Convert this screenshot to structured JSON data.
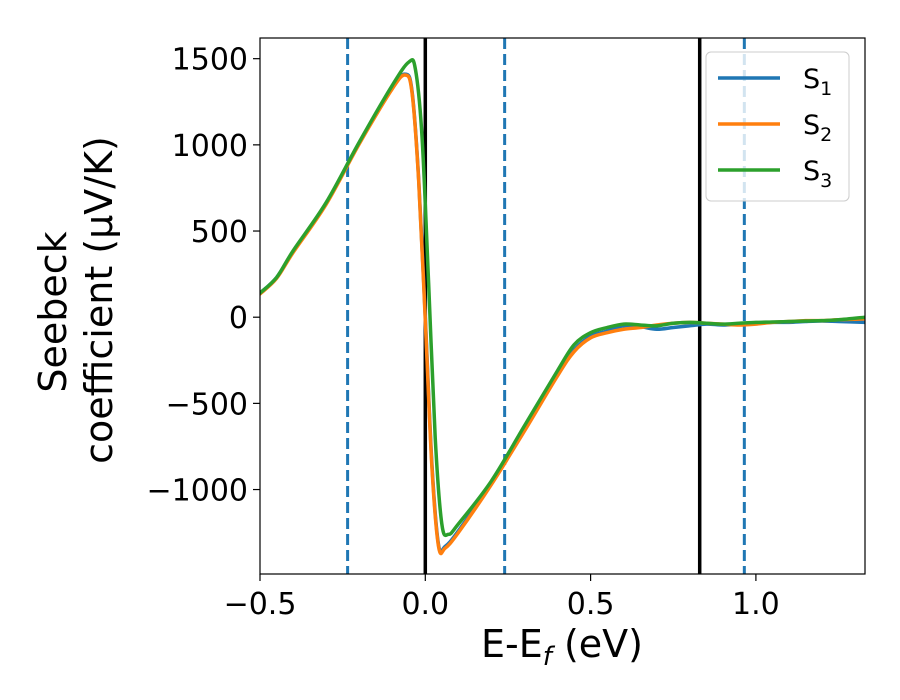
{
  "chart_data": {
    "type": "line",
    "xlabel": "E-E",
    "xlabel_sub": "f",
    "xlabel_unit": " (eV)",
    "ylabel_line1": "Seebeck",
    "ylabel_line2": "coefficient  (μV/K)",
    "xlim": [
      -0.5,
      1.33
    ],
    "ylim": [
      -1490,
      1620
    ],
    "x_ticks": [
      -0.5,
      0.0,
      0.5,
      1.0
    ],
    "x_tick_labels": [
      "−0.5",
      "0.0",
      "0.5",
      "1.0"
    ],
    "y_ticks": [
      -1000,
      -500,
      0,
      500,
      1000,
      1500
    ],
    "y_tick_labels": [
      "−1000",
      "−500",
      "0",
      "500",
      "1000",
      "1500"
    ],
    "legend_position": "top-right",
    "vertical_lines": [
      {
        "x": 0.0,
        "style": "solid",
        "color": "#000000"
      },
      {
        "x": 0.83,
        "style": "solid",
        "color": "#000000"
      },
      {
        "x": -0.235,
        "style": "dashed",
        "color": "#1f77b4"
      },
      {
        "x": 0.24,
        "style": "dashed",
        "color": "#1f77b4"
      },
      {
        "x": 0.965,
        "style": "dashed",
        "color": "#1f77b4"
      }
    ],
    "series": [
      {
        "name": "S",
        "sub": "1",
        "color": "#1f77b4",
        "x": [
          -0.5,
          -0.45,
          -0.4,
          -0.3,
          -0.2,
          -0.1,
          -0.06,
          -0.04,
          -0.02,
          0.0,
          0.02,
          0.04,
          0.06,
          0.1,
          0.2,
          0.3,
          0.4,
          0.45,
          0.5,
          0.55,
          0.6,
          0.65,
          0.7,
          0.75,
          0.8,
          0.85,
          0.9,
          0.95,
          1.0,
          1.05,
          1.1,
          1.15,
          1.2,
          1.25,
          1.33
        ],
        "y": [
          140,
          230,
          380,
          660,
          1010,
          1330,
          1410,
          1310,
          800,
          0,
          -850,
          -1320,
          -1330,
          -1240,
          -960,
          -650,
          -330,
          -190,
          -110,
          -80,
          -50,
          -55,
          -70,
          -60,
          -50,
          -40,
          -45,
          -40,
          -35,
          -30,
          -30,
          -25,
          -22,
          -25,
          -30
        ]
      },
      {
        "name": "S",
        "sub": "2",
        "color": "#ff7f0e",
        "x": [
          -0.5,
          -0.45,
          -0.4,
          -0.3,
          -0.2,
          -0.1,
          -0.06,
          -0.04,
          -0.02,
          0.0,
          0.02,
          0.04,
          0.06,
          0.1,
          0.2,
          0.3,
          0.4,
          0.45,
          0.5,
          0.55,
          0.6,
          0.65,
          0.7,
          0.75,
          0.8,
          0.85,
          0.9,
          0.95,
          1.0,
          1.05,
          1.1,
          1.15,
          1.2,
          1.25,
          1.33
        ],
        "y": [
          135,
          225,
          375,
          655,
          1005,
          1325,
          1405,
          1300,
          790,
          -20,
          -870,
          -1330,
          -1340,
          -1250,
          -970,
          -660,
          -340,
          -200,
          -120,
          -90,
          -70,
          -60,
          -45,
          -35,
          -30,
          -35,
          -40,
          -45,
          -40,
          -30,
          -25,
          -20,
          -20,
          -15,
          -10
        ]
      },
      {
        "name": "S",
        "sub": "3",
        "color": "#2ca02c",
        "x": [
          -0.5,
          -0.45,
          -0.4,
          -0.3,
          -0.2,
          -0.1,
          -0.05,
          -0.03,
          -0.01,
          0.01,
          0.03,
          0.05,
          0.07,
          0.1,
          0.2,
          0.3,
          0.4,
          0.45,
          0.5,
          0.55,
          0.6,
          0.65,
          0.7,
          0.75,
          0.8,
          0.85,
          0.9,
          0.95,
          1.0,
          1.05,
          1.1,
          1.15,
          1.2,
          1.25,
          1.33
        ],
        "y": [
          140,
          230,
          385,
          665,
          1015,
          1345,
          1480,
          1440,
          1050,
          200,
          -700,
          -1200,
          -1260,
          -1200,
          -950,
          -630,
          -310,
          -160,
          -90,
          -60,
          -40,
          -45,
          -50,
          -35,
          -30,
          -35,
          -40,
          -35,
          -30,
          -28,
          -25,
          -22,
          -20,
          -15,
          0
        ]
      }
    ]
  }
}
